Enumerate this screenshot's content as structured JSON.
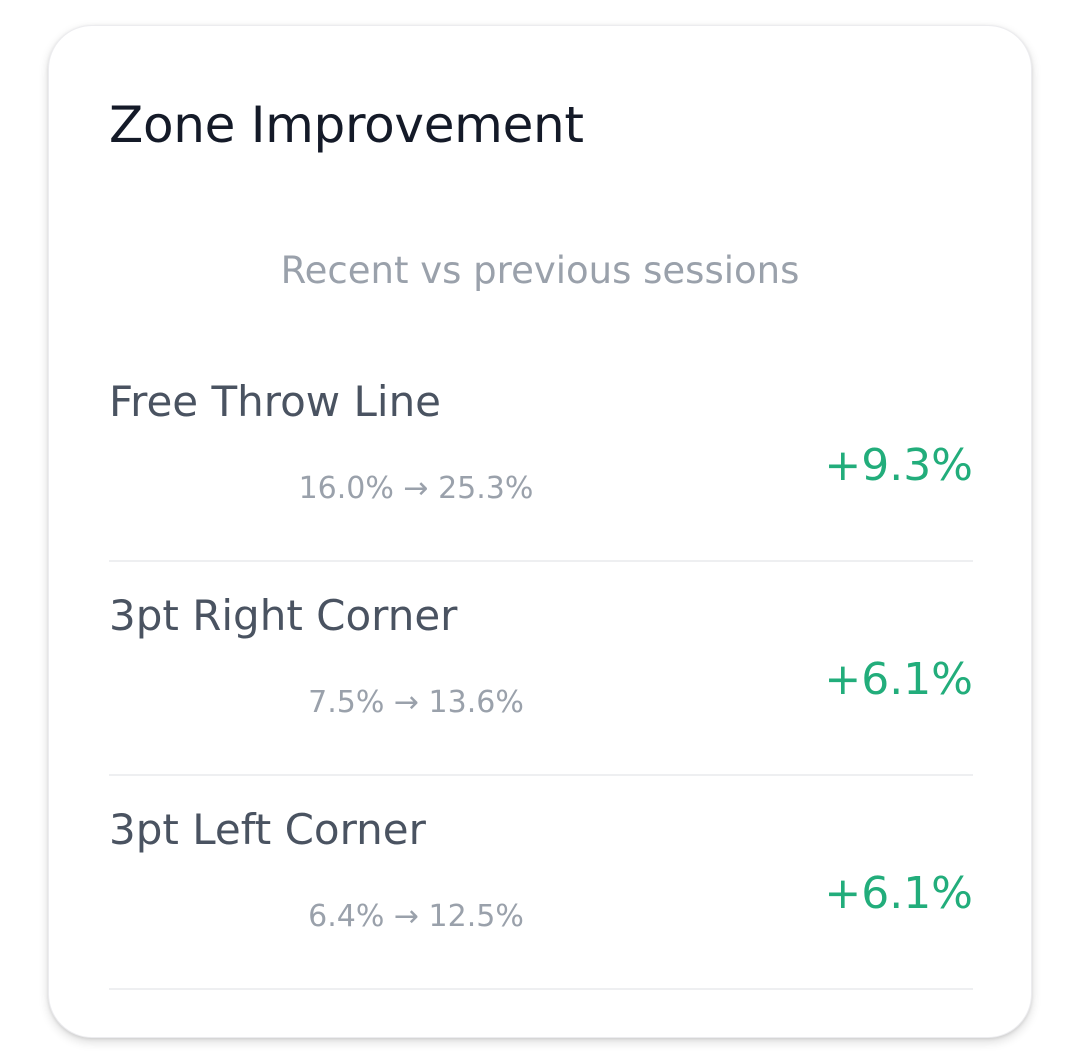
{
  "card": {
    "title": "Zone Improvement",
    "subtitle": "Recent vs previous sessions"
  },
  "zones": [
    {
      "name": "Free Throw Line",
      "range": "16.0% → 25.3%",
      "delta": "+9.3%"
    },
    {
      "name": "3pt Right Corner",
      "range": "7.5% → 13.6%",
      "delta": "+6.1%"
    },
    {
      "name": "3pt Left Corner",
      "range": "6.4% → 12.5%",
      "delta": "+6.1%"
    }
  ],
  "colors": {
    "positive": "#22ad7b",
    "title": "#141a28",
    "muted": "#9aa1ab",
    "label": "#4a5361"
  }
}
